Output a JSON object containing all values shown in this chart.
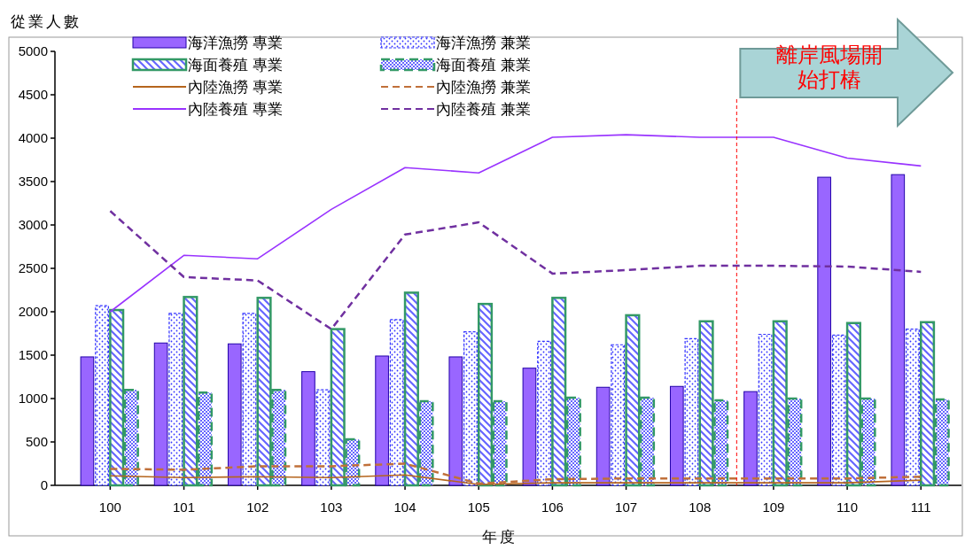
{
  "chart_data": {
    "type": "bar",
    "ylabel": "從業人數",
    "xlabel": "年度",
    "x": [
      100,
      101,
      102,
      103,
      104,
      105,
      106,
      107,
      108,
      109,
      110,
      111
    ],
    "xlim": [
      99.25,
      111.55
    ],
    "xticks": [
      100,
      101,
      102,
      103,
      104,
      105,
      106,
      107,
      108,
      109,
      110,
      111
    ],
    "ylim": [
      0,
      5000
    ],
    "yticks": [
      0,
      500,
      1000,
      1500,
      2000,
      2500,
      3000,
      3500,
      4000,
      4500,
      5000
    ],
    "legend": "top left",
    "series": [
      {
        "name": "海洋漁撈 專業",
        "color": "#9966ff",
        "values": [
          1480,
          1640,
          1630,
          1310,
          1490,
          1480,
          1350,
          1130,
          1140,
          1080,
          3550,
          3580
        ]
      },
      {
        "name": "海洋漁撈 兼業",
        "color": "#3333ff",
        "values": [
          2070,
          1980,
          1980,
          1100,
          1910,
          1770,
          1660,
          1620,
          1690,
          1740,
          1730,
          1800
        ]
      },
      {
        "name": "海面養殖 專業",
        "color": "#339966",
        "values": [
          2020,
          2170,
          2160,
          1800,
          2220,
          2090,
          2160,
          1960,
          1890,
          1890,
          1870,
          1880
        ]
      },
      {
        "name": "海面養殖 兼業",
        "color": "#339966",
        "values": [
          1100,
          1070,
          1100,
          530,
          970,
          970,
          1010,
          1010,
          980,
          1000,
          1000,
          990
        ]
      },
      {
        "name": "內陸漁撈 專業",
        "type": "line",
        "line_style": "solid",
        "color": "#b5651d",
        "values": [
          110,
          90,
          100,
          90,
          120,
          10,
          30,
          30,
          30,
          30,
          30,
          60
        ]
      },
      {
        "name": "內陸漁撈 兼業",
        "type": "line",
        "line_style": "dashed",
        "color": "#c0703a",
        "values": [
          190,
          180,
          220,
          220,
          250,
          20,
          70,
          80,
          80,
          80,
          80,
          100
        ]
      },
      {
        "name": "內陸養殖 專業",
        "type": "line",
        "line_style": "solid",
        "color": "#9933ff",
        "values": [
          2000,
          2650,
          2610,
          3180,
          3660,
          3600,
          4010,
          4040,
          4010,
          4010,
          3770,
          3680
        ]
      },
      {
        "name": "內陸養殖 兼業",
        "type": "line",
        "line_style": "dashed",
        "color": "#7030a0",
        "values": [
          3160,
          2400,
          2360,
          1800,
          2890,
          3030,
          2440,
          2480,
          2530,
          2530,
          2520,
          2460
        ]
      }
    ],
    "ref_lines": [
      {
        "axis": "x",
        "value": 108.5,
        "label": "離岸風場開始打樁",
        "color": "#ff0000",
        "line_style": "dashed"
      }
    ]
  }
}
